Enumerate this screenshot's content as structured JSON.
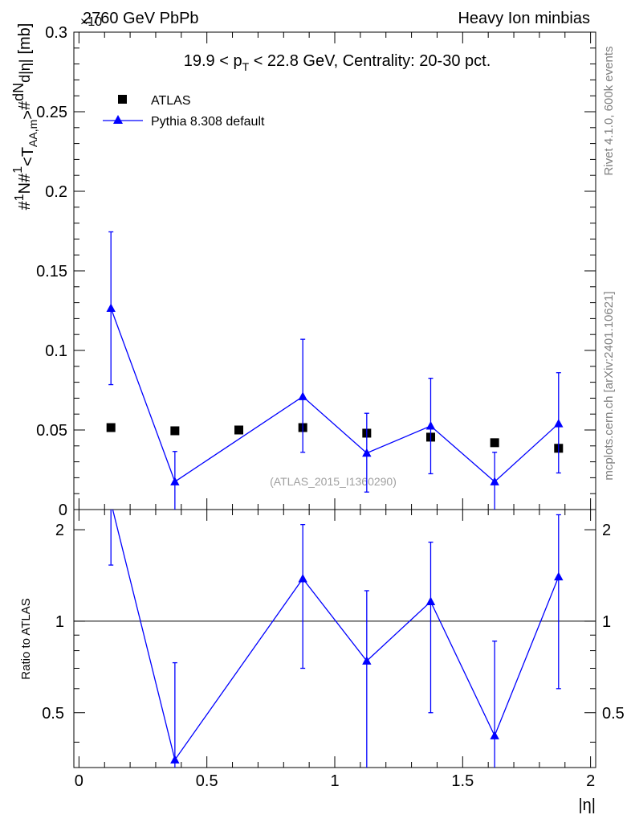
{
  "header": {
    "left": "2760 GeV PbPb",
    "right": "Heavy Ion minbias",
    "exponent": "×10"
  },
  "side_labels": {
    "rivet": "Rivet 4.1.0,  600k events",
    "mcplots": "mcplots.cern.ch [arXiv:2401.10621]"
  },
  "chart_data": [
    {
      "type": "scatter",
      "panel": "main",
      "title": "19.9 < pT < 22.8 GeV, Centrality: 20-30 pct.",
      "title_parts": {
        "a": "19.9 < p",
        "sub": "T",
        "b": " < 22.8 GeV, Centrality: 20-30 pct."
      },
      "ylabel": "#1/N #1/<T_AA,m> #dN/d|η| [mb]",
      "ylabel_parts": {
        "hash1": "#",
        "one1": "1",
        "n": "N",
        "hash2": "#",
        "one2": "1",
        "taa_l": "<T",
        "taa_sub": "AA,m",
        "taa_r": ">",
        "hash3": "#",
        "dn": "dN",
        "deta": "d|η|",
        "unit": "[mb]"
      },
      "xlabel": "|η|",
      "x_range": [
        -0.02,
        2.02
      ],
      "ylim": [
        0,
        0.3
      ],
      "y_ticks": [
        "0",
        "0.05",
        "0.1",
        "0.15",
        "0.2",
        "0.25",
        "0.3"
      ],
      "y_tick_values": [
        0,
        0.05,
        0.1,
        0.15,
        0.2,
        0.25,
        0.3
      ],
      "watermark": "(ATLAS_2015_I1360290)",
      "legend": [
        {
          "name": "ATLAS",
          "marker": "square",
          "color": "#000000"
        },
        {
          "name": "Pythia 8.308 default",
          "marker": "triangle",
          "color": "#0000ff"
        }
      ],
      "series": [
        {
          "name": "ATLAS",
          "x": [
            0.125,
            0.375,
            0.625,
            0.875,
            1.125,
            1.375,
            1.625,
            1.875
          ],
          "values": [
            0.0515,
            0.0495,
            0.05,
            0.0515,
            0.048,
            0.0455,
            0.042,
            0.0385
          ]
        },
        {
          "name": "Pythia 8.308 default",
          "x": [
            0.125,
            0.375,
            0.625,
            0.875,
            1.125,
            1.375,
            1.625,
            1.875
          ],
          "values": [
            0.1265,
            0.0175,
            null,
            0.071,
            0.0355,
            0.0525,
            0.0175,
            0.054
          ],
          "err_low": [
            0.048,
            0.0185,
            null,
            0.035,
            0.0245,
            0.03,
            0.018,
            0.031
          ],
          "err_high": [
            0.048,
            0.019,
            null,
            0.036,
            0.025,
            0.03,
            0.0185,
            0.032
          ]
        }
      ]
    },
    {
      "type": "line",
      "panel": "ratio",
      "ylabel": "Ratio to ATLAS",
      "xlabel": "|η|",
      "x_range": [
        -0.02,
        2.02
      ],
      "ylim": [
        0.33,
        2.33
      ],
      "x_ticks": [
        "0",
        "0.5",
        "1",
        "1.5",
        "2"
      ],
      "x_tick_values": [
        0,
        0.5,
        1,
        1.5,
        2
      ],
      "y_ticks": [
        "0.5",
        "1",
        "2"
      ],
      "y_tick_values": [
        0.5,
        1,
        2
      ],
      "reference_line": 1,
      "series": [
        {
          "name": "Pythia 8.308 default",
          "x": [
            0.125,
            0.375,
            0.625,
            0.875,
            1.125,
            1.375,
            1.625,
            1.875
          ],
          "values": [
            2.46,
            0.35,
            null,
            1.38,
            0.74,
            1.16,
            0.42,
            1.4
          ],
          "err_low": [
            0.93,
            0.37,
            null,
            0.68,
            0.51,
            0.66,
            0.43,
            0.8
          ],
          "err_high": [
            0.93,
            0.38,
            null,
            0.7,
            0.52,
            0.66,
            0.44,
            0.84
          ]
        }
      ]
    }
  ]
}
